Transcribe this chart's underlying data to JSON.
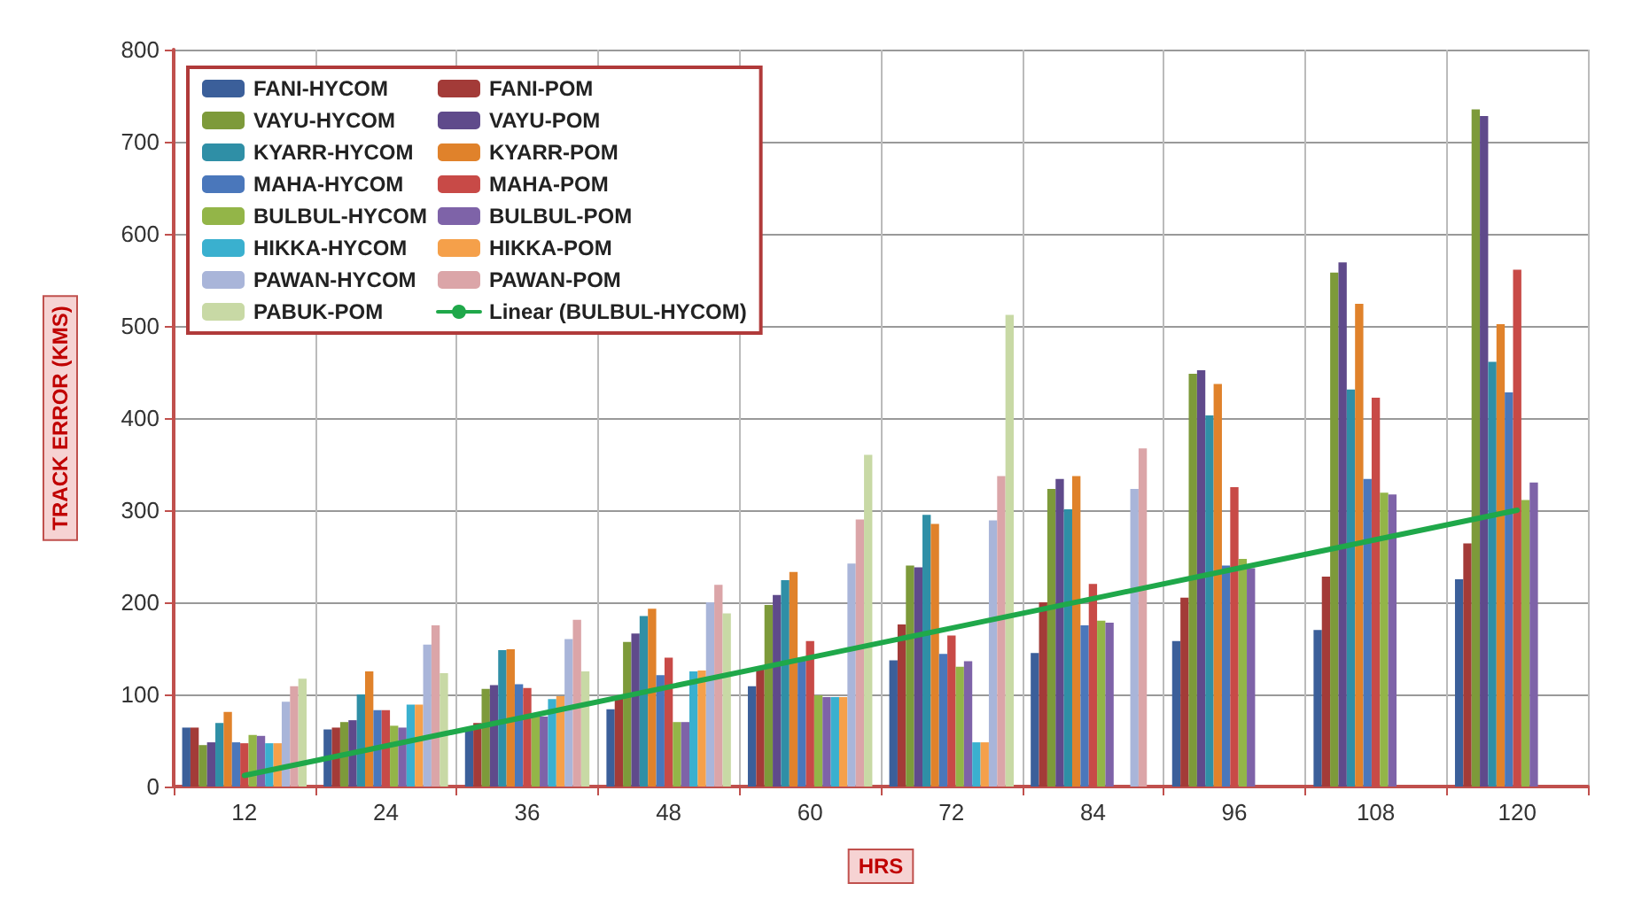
{
  "chart_data": {
    "type": "bar",
    "xlabel": "HRS",
    "ylabel": "TRACK ERROR (KMS)",
    "categories": [
      "12",
      "24",
      "36",
      "48",
      "60",
      "72",
      "84",
      "96",
      "108",
      "120"
    ],
    "ylim": [
      0,
      800
    ],
    "yticks": [
      0,
      100,
      200,
      300,
      400,
      500,
      600,
      700,
      800
    ],
    "grid": true,
    "legend": "top left",
    "series": [
      {
        "name": "FANI-HYCOM",
        "color": "#3b5f9a",
        "values": [
          64,
          62,
          61,
          84,
          109,
          137,
          145,
          158,
          170,
          225
        ]
      },
      {
        "name": "FANI-POM",
        "color": "#a33b38",
        "values": [
          64,
          64,
          69,
          98,
          130,
          176,
          200,
          205,
          228,
          264
        ]
      },
      {
        "name": "VAYU-HYCOM",
        "color": "#7d9a3a",
        "values": [
          45,
          70,
          106,
          157,
          197,
          240,
          323,
          448,
          558,
          735
        ]
      },
      {
        "name": "VAYU-POM",
        "color": "#5f4a8b",
        "values": [
          48,
          72,
          110,
          166,
          208,
          238,
          334,
          452,
          569,
          728
        ]
      },
      {
        "name": "KYARR-HYCOM",
        "color": "#2f8fa6",
        "values": [
          69,
          100,
          148,
          185,
          224,
          295,
          301,
          403,
          431,
          461
        ]
      },
      {
        "name": "KYARR-POM",
        "color": "#e0822b",
        "values": [
          81,
          125,
          149,
          193,
          233,
          285,
          337,
          437,
          524,
          502
        ]
      },
      {
        "name": "MAHA-HYCOM",
        "color": "#4a77bb",
        "values": [
          48,
          83,
          111,
          121,
          140,
          144,
          175,
          240,
          334,
          428
        ]
      },
      {
        "name": "MAHA-POM",
        "color": "#c84a47",
        "values": [
          47,
          83,
          107,
          140,
          158,
          164,
          220,
          325,
          422,
          561
        ]
      },
      {
        "name": "BULBUL-HYCOM",
        "color": "#93b548",
        "values": [
          56,
          66,
          76,
          70,
          99,
          130,
          180,
          247,
          319,
          311
        ]
      },
      {
        "name": "BULBUL-POM",
        "color": "#7e63a8",
        "values": [
          55,
          64,
          76,
          70,
          97,
          136,
          178,
          237,
          317,
          330
        ]
      },
      {
        "name": "HIKKA-HYCOM",
        "color": "#3ab0cf",
        "values": [
          47,
          89,
          95,
          125,
          97,
          48,
          null,
          null,
          null,
          null
        ]
      },
      {
        "name": "HIKKA-POM",
        "color": "#f5a04a",
        "values": [
          47,
          89,
          98,
          126,
          97,
          48,
          null,
          null,
          null,
          null
        ]
      },
      {
        "name": "PAWAN-HYCOM",
        "color": "#a9b5d9",
        "values": [
          92,
          154,
          160,
          200,
          242,
          289,
          323,
          null,
          null,
          null
        ]
      },
      {
        "name": "PAWAN-POM",
        "color": "#dba5a8",
        "values": [
          109,
          175,
          181,
          219,
          290,
          337,
          367,
          null,
          null,
          null
        ]
      },
      {
        "name": "PABUK-POM",
        "color": "#c8d9a5",
        "values": [
          117,
          123,
          125,
          188,
          360,
          512,
          null,
          null,
          null,
          null
        ]
      },
      {
        "name": "Linear (BULBUL-HYCOM)",
        "type": "line",
        "color": "#1fa84a",
        "marker": "none",
        "line_style": "solid",
        "values": [
          12,
          44,
          76,
          108,
          140,
          172,
          204,
          236,
          268,
          300
        ]
      }
    ]
  }
}
